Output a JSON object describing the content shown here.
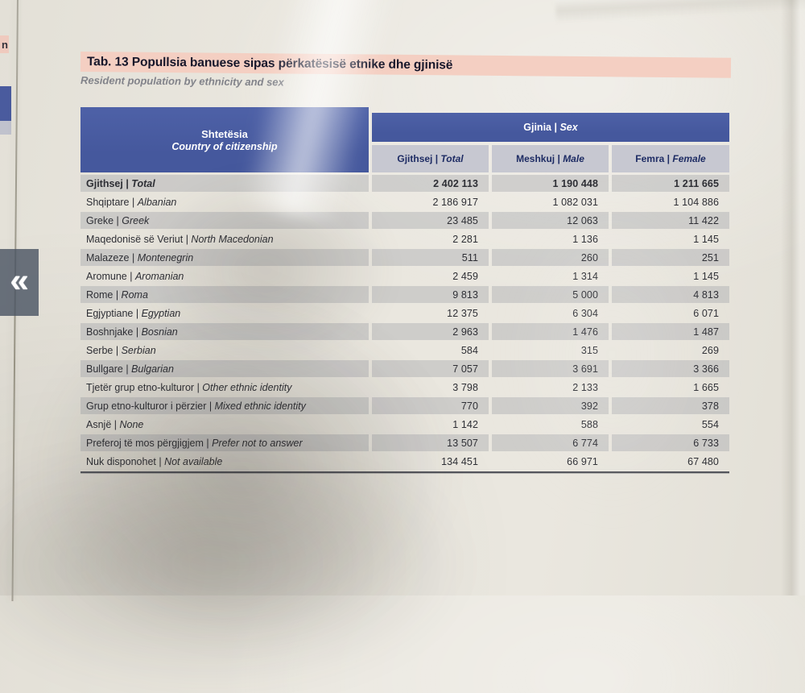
{
  "viewer": {
    "prev_button": {
      "glyph": "«"
    }
  },
  "left_page": {
    "fragment_text": "n"
  },
  "document": {
    "title_sq": "Tab. 13 Popullsia banuese sipas përkatësisë etnike dhe gjinisë",
    "title_en": "Resident population by ethnicity and sex",
    "table": {
      "sep": "|",
      "row_header": {
        "sq": "Shtetësia",
        "en": "Country of citizenship"
      },
      "col_group": {
        "sq": "Gjinia",
        "en": "Sex"
      },
      "columns": [
        {
          "sq": "Gjithsej",
          "en": "Total"
        },
        {
          "sq": "Meshkuj",
          "en": "Male"
        },
        {
          "sq": "Femra",
          "en": "Female"
        }
      ],
      "rows": [
        {
          "sq": "Gjithsej",
          "en": "Total",
          "total": "2 402 113",
          "male": "1 190 448",
          "female": "1 211 665",
          "bold": true
        },
        {
          "sq": "Shqiptare",
          "en": "Albanian",
          "total": "2 186 917",
          "male": "1 082 031",
          "female": "1 104 886"
        },
        {
          "sq": "Greke",
          "en": "Greek",
          "total": "23 485",
          "male": "12 063",
          "female": "11 422"
        },
        {
          "sq": "Maqedonisë së Veriut",
          "en": "North Macedonian",
          "total": "2 281",
          "male": "1 136",
          "female": "1 145"
        },
        {
          "sq": "Malazeze",
          "en": "Montenegrin",
          "total": "511",
          "male": "260",
          "female": "251"
        },
        {
          "sq": "Aromune",
          "en": "Aromanian",
          "total": "2 459",
          "male": "1 314",
          "female": "1 145"
        },
        {
          "sq": "Rome",
          "en": "Roma",
          "total": "9 813",
          "male": "5 000",
          "female": "4 813"
        },
        {
          "sq": "Egjyptiane",
          "en": "Egyptian",
          "total": "12 375",
          "male": "6 304",
          "female": "6 071"
        },
        {
          "sq": "Boshnjake",
          "en": "Bosnian",
          "total": "2 963",
          "male": "1 476",
          "female": "1 487"
        },
        {
          "sq": "Serbe",
          "en": "Serbian",
          "total": "584",
          "male": "315",
          "female": "269"
        },
        {
          "sq": "Bullgare",
          "en": "Bulgarian",
          "total": "7 057",
          "male": "3 691",
          "female": "3 366"
        },
        {
          "sq": "Tjetër grup etno-kulturor",
          "en": "Other ethnic identity",
          "total": "3 798",
          "male": "2 133",
          "female": "1 665"
        },
        {
          "sq": "Grup etno-kulturor i përzier",
          "en": "Mixed ethnic identity",
          "total": "770",
          "male": "392",
          "female": "378"
        },
        {
          "sq": "Asnjë",
          "en": "None",
          "total": "1 142",
          "male": "588",
          "female": "554"
        },
        {
          "sq": "Preferoj të mos përgjigjem",
          "en": "Prefer not to answer",
          "total": "13 507",
          "male": "6 774",
          "female": "6 733"
        },
        {
          "sq": "Nuk disponohet",
          "en": "Not available",
          "total": "134 451",
          "male": "66 971",
          "female": "67 480"
        }
      ]
    }
  },
  "colors": {
    "header_blue": "#45589d",
    "subheader_bg": "#c7c8d1",
    "subheader_text": "#1e2c64",
    "title_band": "#f4cfc2",
    "page": "#e8e5dc",
    "rule": "#54555c",
    "body_text": "#2e2f35"
  }
}
